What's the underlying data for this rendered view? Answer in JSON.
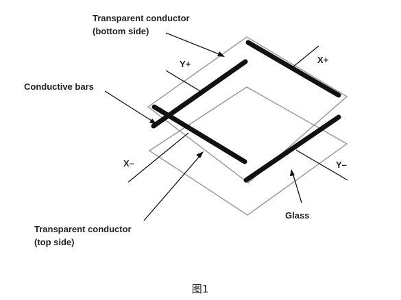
{
  "labels": {
    "transparent_bottom_line1": "Transparent conductor",
    "transparent_bottom_line2": "(bottom side)",
    "y_plus": "Y+",
    "x_plus": "X+",
    "conductive_bars": "Conductive bars",
    "x_minus": "X–",
    "y_minus": "Y–",
    "glass": "Glass",
    "transparent_top_line1": "Transparent conductor",
    "transparent_top_line2": "(top side)"
  },
  "caption": "图1",
  "colors": {
    "outline": "#9a9a9a",
    "bar": "#111111",
    "leader": "#111111",
    "text": "#222222"
  }
}
